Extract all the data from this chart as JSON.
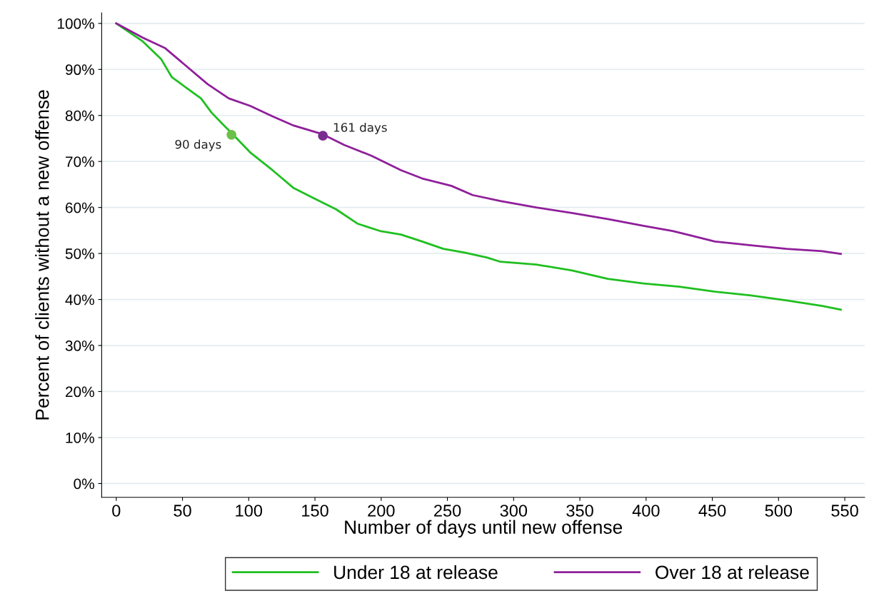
{
  "chart_data": {
    "type": "line",
    "xlabel": "Number of days until new offense",
    "ylabel": "Percent of clients without a new offense",
    "xlim": [
      -11,
      565
    ],
    "ylim": [
      -3,
      102.3
    ],
    "xticks": [
      0,
      50,
      100,
      150,
      200,
      250,
      300,
      350,
      400,
      450,
      500,
      550
    ],
    "yticks": [
      {
        "value": 0,
        "label": "0%"
      },
      {
        "value": 10,
        "label": "10%"
      },
      {
        "value": 20,
        "label": "20%"
      },
      {
        "value": 30,
        "label": "30%"
      },
      {
        "value": 40,
        "label": "40%"
      },
      {
        "value": 50,
        "label": "50%"
      },
      {
        "value": 60,
        "label": "60%"
      },
      {
        "value": 70,
        "label": "70%"
      },
      {
        "value": 80,
        "label": "80%"
      },
      {
        "value": 90,
        "label": "90%"
      },
      {
        "value": 100,
        "label": "100%"
      }
    ],
    "grid": "y",
    "legend": "bottom",
    "series": [
      {
        "name": "Under 18 at release",
        "color": "#1fbf1f",
        "x": [
          0,
          20,
          34,
          42,
          53,
          64,
          72,
          80,
          87,
          101,
          118,
          134,
          150,
          166,
          182,
          199,
          215,
          231,
          247,
          263,
          280,
          290,
          317,
          344,
          371,
          398,
          425,
          452,
          479,
          506,
          533,
          547
        ],
        "values": [
          100,
          96.1,
          92.2,
          88.3,
          86,
          83.7,
          80.6,
          78.2,
          76.2,
          72,
          68.1,
          64.2,
          61.9,
          59.6,
          56.5,
          54.9,
          54.1,
          52.6,
          51,
          50.2,
          49.1,
          48.2,
          47.6,
          46.3,
          44.5,
          43.5,
          42.8,
          41.7,
          40.9,
          39.8,
          38.6,
          37.8
        ]
      },
      {
        "name": "Over 18 at release",
        "color": "#8f1f9a",
        "x": [
          0,
          20,
          37,
          53,
          69,
          85,
          101,
          118,
          134,
          156,
          172,
          193,
          215,
          231,
          253,
          269,
          290,
          317,
          344,
          371,
          398,
          420,
          431,
          452,
          479,
          506,
          533,
          547
        ],
        "values": [
          100,
          96.9,
          94.6,
          90.7,
          86.8,
          83.7,
          82.1,
          79.8,
          77.8,
          75.9,
          73.6,
          71.2,
          68.1,
          66.3,
          64.7,
          62.7,
          61.4,
          60,
          58.8,
          57.5,
          56,
          54.9,
          54.1,
          52.6,
          51.8,
          51,
          50.5,
          49.9
        ]
      },
      {
        "type": "scatter",
        "color": "#6cc04a",
        "x": [
          87
        ],
        "values": [
          75.8
        ]
      },
      {
        "type": "scatter",
        "color": "#7b2d8e",
        "x": [
          156
        ],
        "values": [
          75.6
        ]
      }
    ],
    "annotations": [
      {
        "text": "90 days",
        "x": 87,
        "y": 75.8
      },
      {
        "text": "161 days",
        "x": 156,
        "y": 75.6
      }
    ]
  }
}
